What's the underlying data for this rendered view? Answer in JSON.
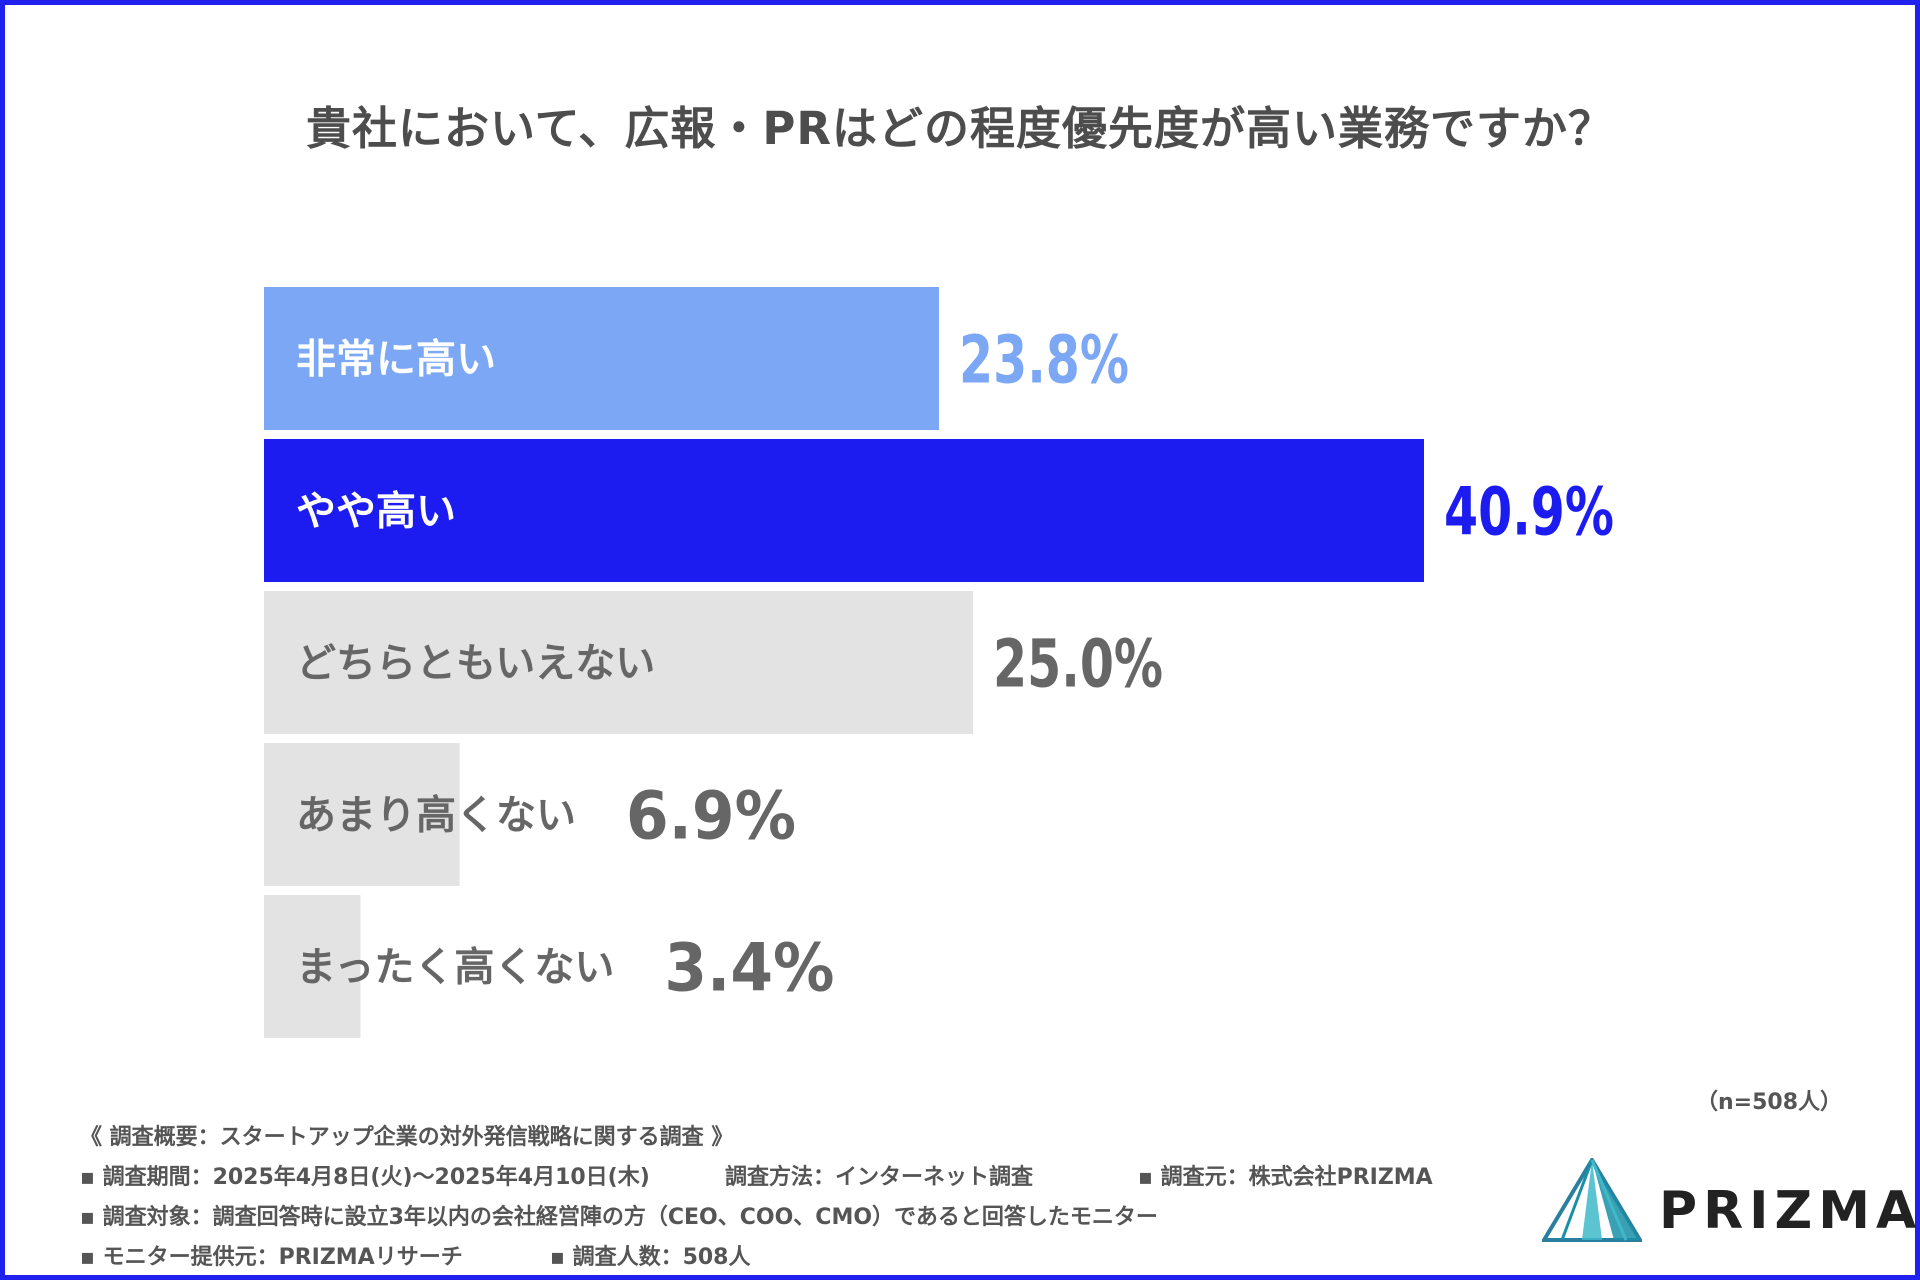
{
  "title": "貴社において、広報・PRはどの程度優先度が高い業務ですか？",
  "sample_size": "（n=508人）",
  "chart_data": {
    "type": "bar",
    "orientation": "horizontal",
    "categories": [
      "非常に高い",
      "やや高い",
      "どちらともいえない",
      "あまり高くない",
      "まったく高くない"
    ],
    "values": [
      23.8,
      40.9,
      25.0,
      6.9,
      3.4
    ],
    "value_labels": [
      "23.8%",
      "40.9%",
      "25.0%",
      "6.9%",
      "3.4%"
    ],
    "unit": "%",
    "xlim": [
      0,
      40.9
    ],
    "colors": [
      "#7ba7f5",
      "#1c1cf0",
      "#e3e3e3",
      "#e3e3e3",
      "#e3e3e3"
    ],
    "label_colors": [
      "#ffffff",
      "#ffffff",
      "#666666",
      "#666666",
      "#666666"
    ],
    "value_colors": [
      "#7ba7f5",
      "#1c1cf0",
      "#666666",
      "#666666",
      "#666666"
    ],
    "grid": false,
    "legend": "none"
  },
  "footer": {
    "heading": "《 調査概要：スタートアップ企業の対外発信戦略に関する調査 》",
    "period": "▪ 調査期間：2025年4月8日(火)〜2025年4月10日(木)",
    "method": "調査方法：インターネット調査",
    "source": "▪ 調査元：株式会社PRIZMA",
    "target": "▪ 調査対象：調査回答時に設立3年以内の会社経営陣の方（CEO、COO、CMO）であると回答したモニター",
    "provider": "▪ モニター提供元：PRIZMAリサーチ",
    "count": "▪ 調査人数：508人"
  },
  "logo": {
    "name": "PRIZMA",
    "colors": [
      "#1a8fa8",
      "#3fb8c8",
      "#2a6f9a"
    ]
  }
}
